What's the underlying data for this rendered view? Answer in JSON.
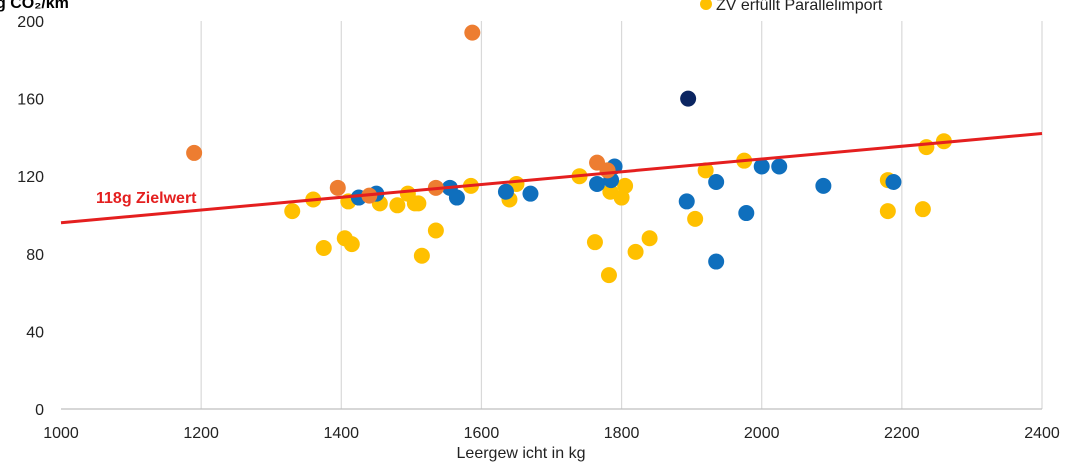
{
  "chart_data": {
    "type": "scatter",
    "title": "",
    "unit_label": "g CO₂/km",
    "xlabel": "Leergew icht in kg",
    "ylabel": "",
    "xlim": [
      1000,
      2400
    ],
    "ylim": [
      0,
      200
    ],
    "x_ticks": [
      1000,
      1200,
      1400,
      1600,
      1800,
      2000,
      2200,
      2400
    ],
    "y_ticks": [
      0,
      40,
      80,
      120,
      160,
      200
    ],
    "grid": "vertical",
    "legend_position": "top-right",
    "colors": {
      "blue": "#0f6fbd",
      "orange": "#ed7d31",
      "yellow": "#ffc000",
      "navy": "#0b2561",
      "target_line": "#e41f1f"
    },
    "series": [
      {
        "name": "ZV erfüllt Parallelimport",
        "color": "#ffc000",
        "points": [
          [
            1330,
            102
          ],
          [
            1360,
            108
          ],
          [
            1375,
            83
          ],
          [
            1405,
            88
          ],
          [
            1410,
            107
          ],
          [
            1415,
            85
          ],
          [
            1455,
            106
          ],
          [
            1480,
            105
          ],
          [
            1495,
            111
          ],
          [
            1505,
            106
          ],
          [
            1510,
            106
          ],
          [
            1515,
            79
          ],
          [
            1535,
            92
          ],
          [
            1585,
            115
          ],
          [
            1640,
            108
          ],
          [
            1650,
            116
          ],
          [
            1740,
            120
          ],
          [
            1762,
            86
          ],
          [
            1780,
            123
          ],
          [
            1782,
            69
          ],
          [
            1784,
            112
          ],
          [
            1800,
            109
          ],
          [
            1805,
            115
          ],
          [
            1820,
            81
          ],
          [
            1840,
            88
          ],
          [
            1905,
            98
          ],
          [
            1920,
            123
          ],
          [
            1975,
            128
          ],
          [
            2180,
            118
          ],
          [
            2180,
            102
          ],
          [
            2230,
            103
          ],
          [
            2235,
            135
          ],
          [
            2260,
            138
          ]
        ]
      },
      {
        "name": "",
        "color": "#0f6fbd",
        "points": [
          [
            1425,
            109
          ],
          [
            1450,
            111
          ],
          [
            1555,
            114
          ],
          [
            1565,
            109
          ],
          [
            1635,
            112
          ],
          [
            1670,
            111
          ],
          [
            1765,
            116
          ],
          [
            1785,
            118
          ],
          [
            1790,
            125
          ],
          [
            1893,
            107
          ],
          [
            1935,
            117
          ],
          [
            1935,
            76
          ],
          [
            1978,
            101
          ],
          [
            2000,
            125
          ],
          [
            2025,
            125
          ],
          [
            2088,
            115
          ],
          [
            2188,
            117
          ]
        ]
      },
      {
        "name": "",
        "color": "#ed7d31",
        "points": [
          [
            1190,
            132
          ],
          [
            1395,
            114
          ],
          [
            1440,
            110
          ],
          [
            1535,
            114
          ],
          [
            1587,
            194
          ],
          [
            1765,
            127
          ],
          [
            1780,
            123
          ]
        ]
      },
      {
        "name": "",
        "color": "#0b2561",
        "points": [
          [
            1895,
            160
          ]
        ]
      }
    ],
    "target_line": {
      "label": "118g Zielwert",
      "color": "#e41f1f",
      "from": [
        1000,
        96
      ],
      "to": [
        2400,
        142
      ]
    }
  }
}
